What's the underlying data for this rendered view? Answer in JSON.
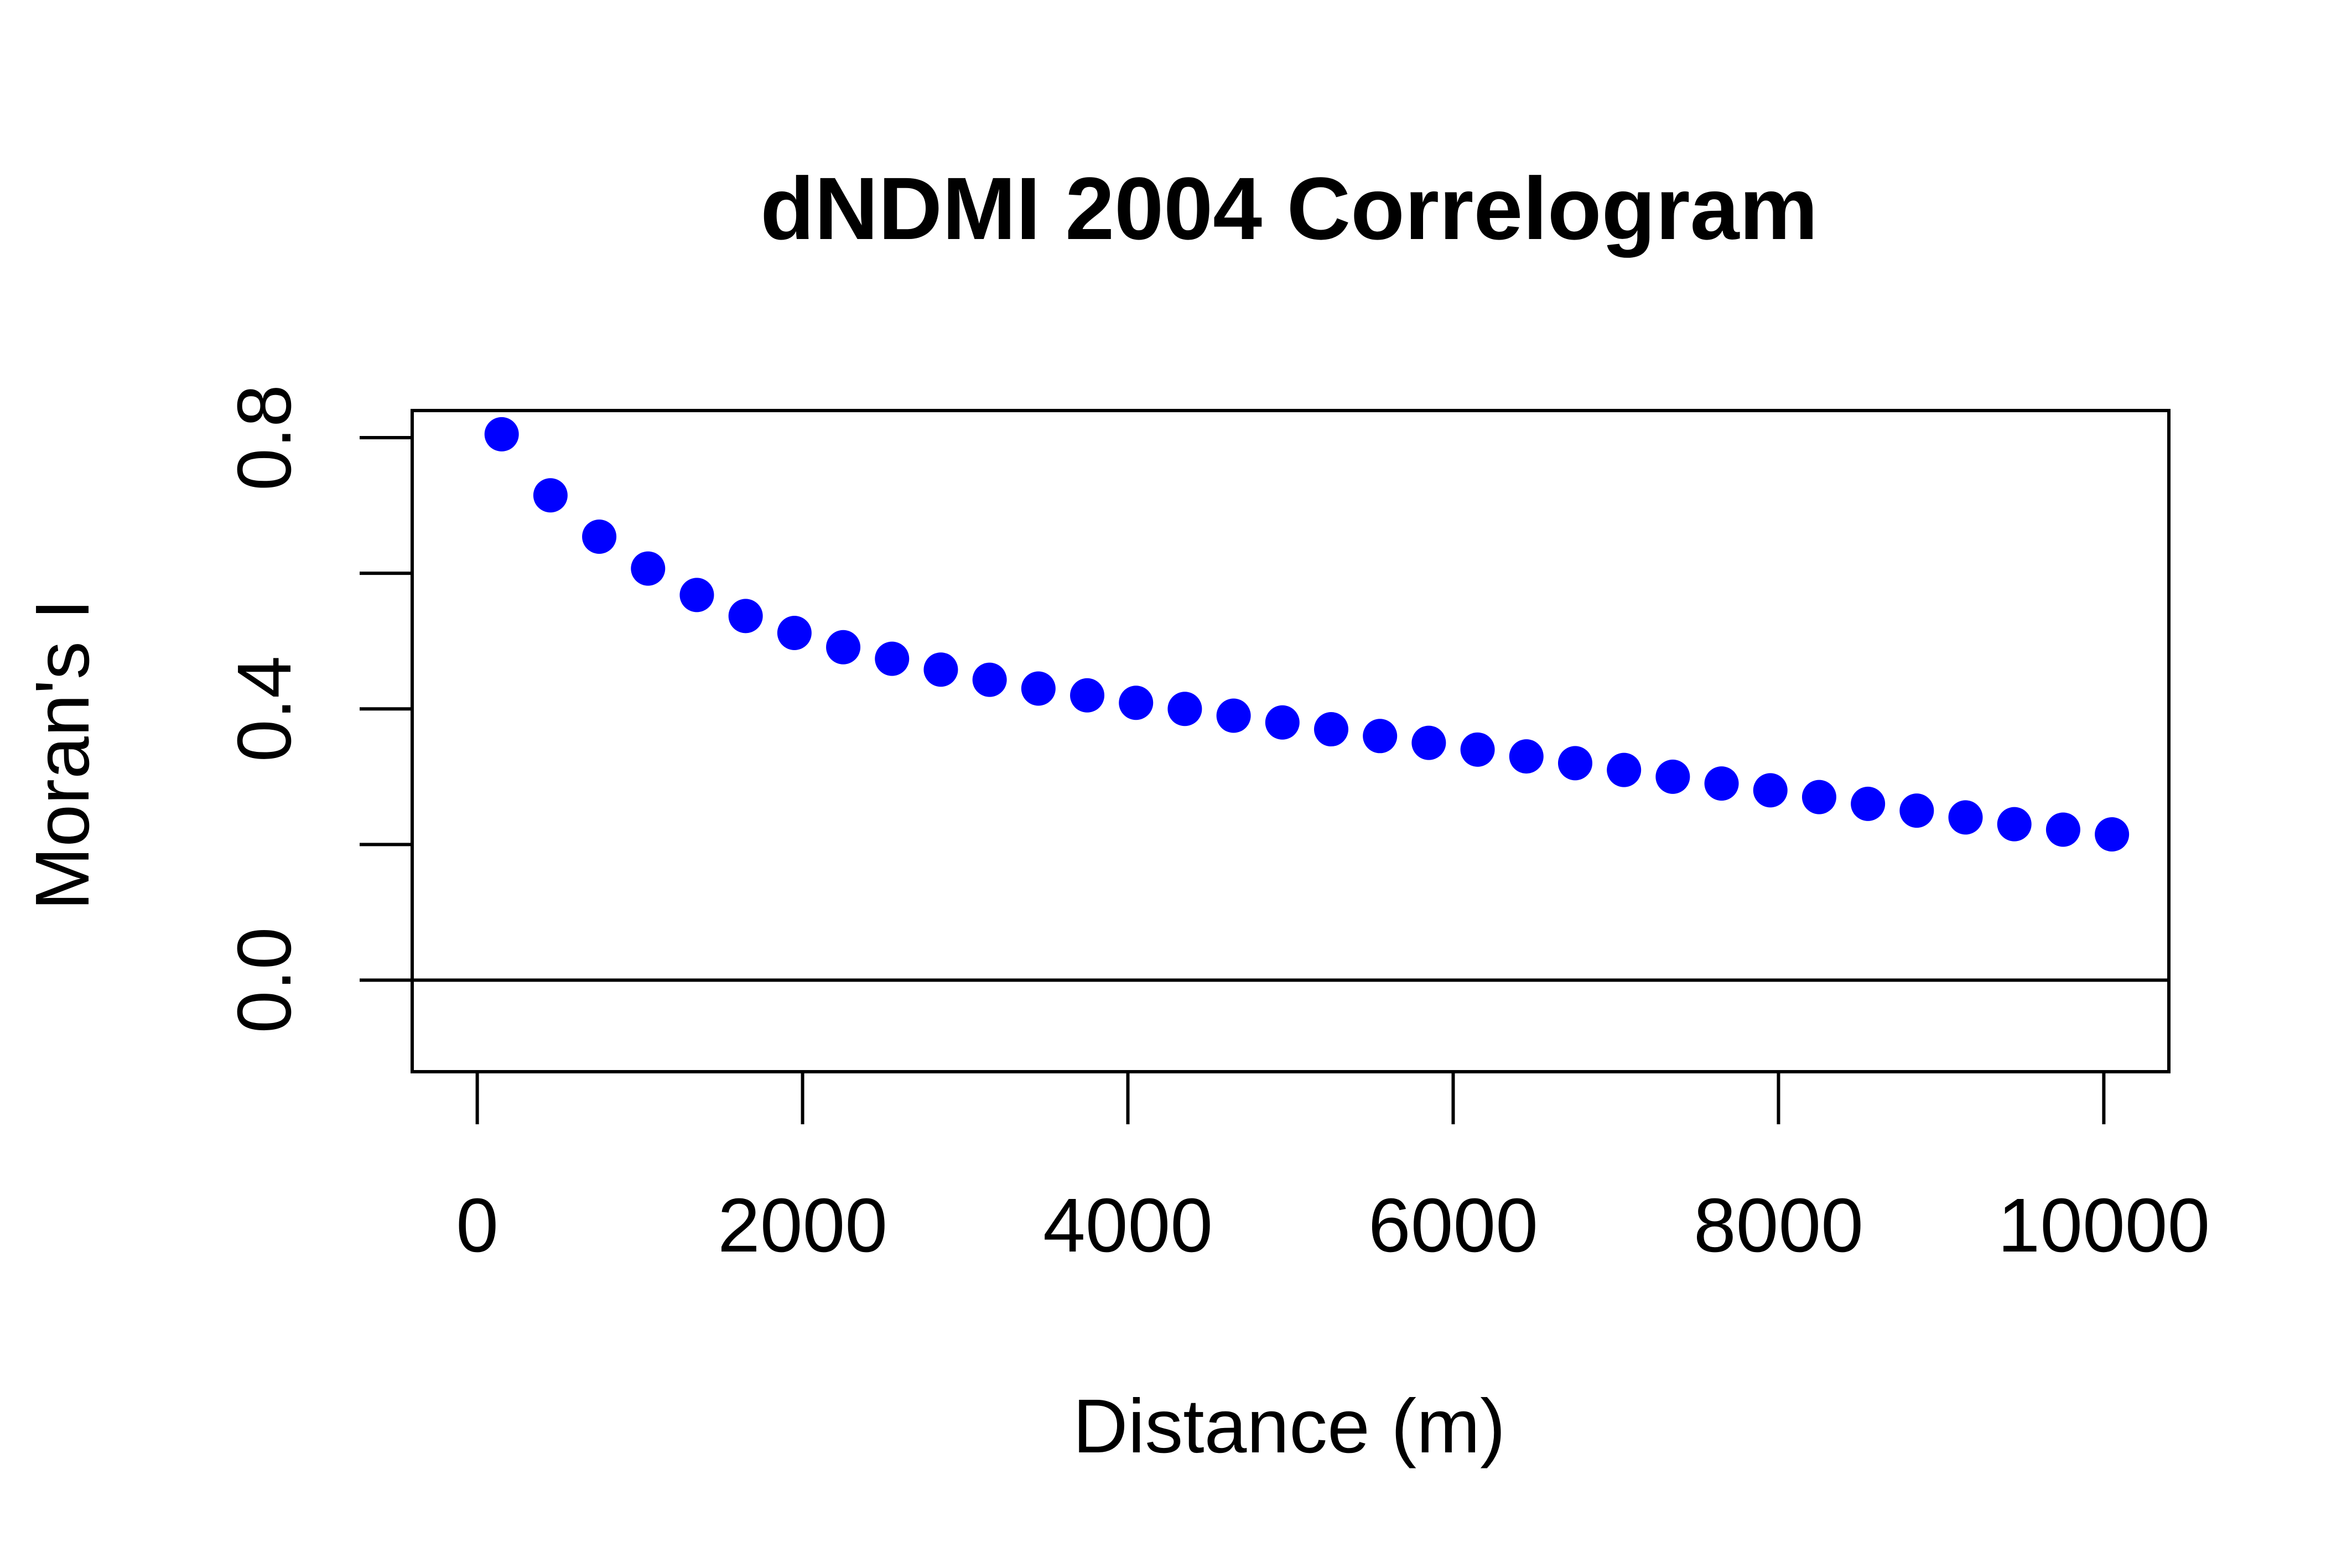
{
  "chart_data": {
    "type": "scatter",
    "title": "dNDMI 2004 Correlogram",
    "xlabel": "Distance (m)",
    "ylabel": "Moran's I",
    "xlim": [
      -400,
      10400
    ],
    "ylim": [
      -0.135,
      0.84
    ],
    "xticks": [
      0,
      2000,
      4000,
      6000,
      8000,
      10000
    ],
    "xtick_labels": [
      "0",
      "2000",
      "4000",
      "6000",
      "8000",
      "10000"
    ],
    "yticks": [
      0.0,
      0.2,
      0.4,
      0.6,
      0.8
    ],
    "ytick_labels": [
      "0.0",
      "",
      "0.4",
      "",
      "0.8"
    ],
    "reference_line_y": 0,
    "grid": false,
    "marker_color": "#0000ff",
    "series": [
      {
        "x": [
          150,
          450,
          750,
          1050,
          1350,
          1650,
          1950,
          2250,
          2550,
          2850,
          3150,
          3450,
          3750,
          4050,
          4350,
          4650,
          4950,
          5250,
          5550,
          5850,
          6150,
          6450,
          6750,
          7050,
          7350,
          7650,
          7950,
          8250,
          8550,
          8850,
          9150,
          9450,
          9750,
          10050
        ],
        "values": [
          0.805,
          0.715,
          0.654,
          0.607,
          0.568,
          0.537,
          0.512,
          0.491,
          0.474,
          0.458,
          0.443,
          0.43,
          0.42,
          0.409,
          0.4,
          0.39,
          0.38,
          0.37,
          0.36,
          0.35,
          0.34,
          0.33,
          0.32,
          0.31,
          0.3,
          0.29,
          0.28,
          0.27,
          0.26,
          0.25,
          0.24,
          0.23,
          0.222,
          0.215
        ]
      }
    ]
  }
}
